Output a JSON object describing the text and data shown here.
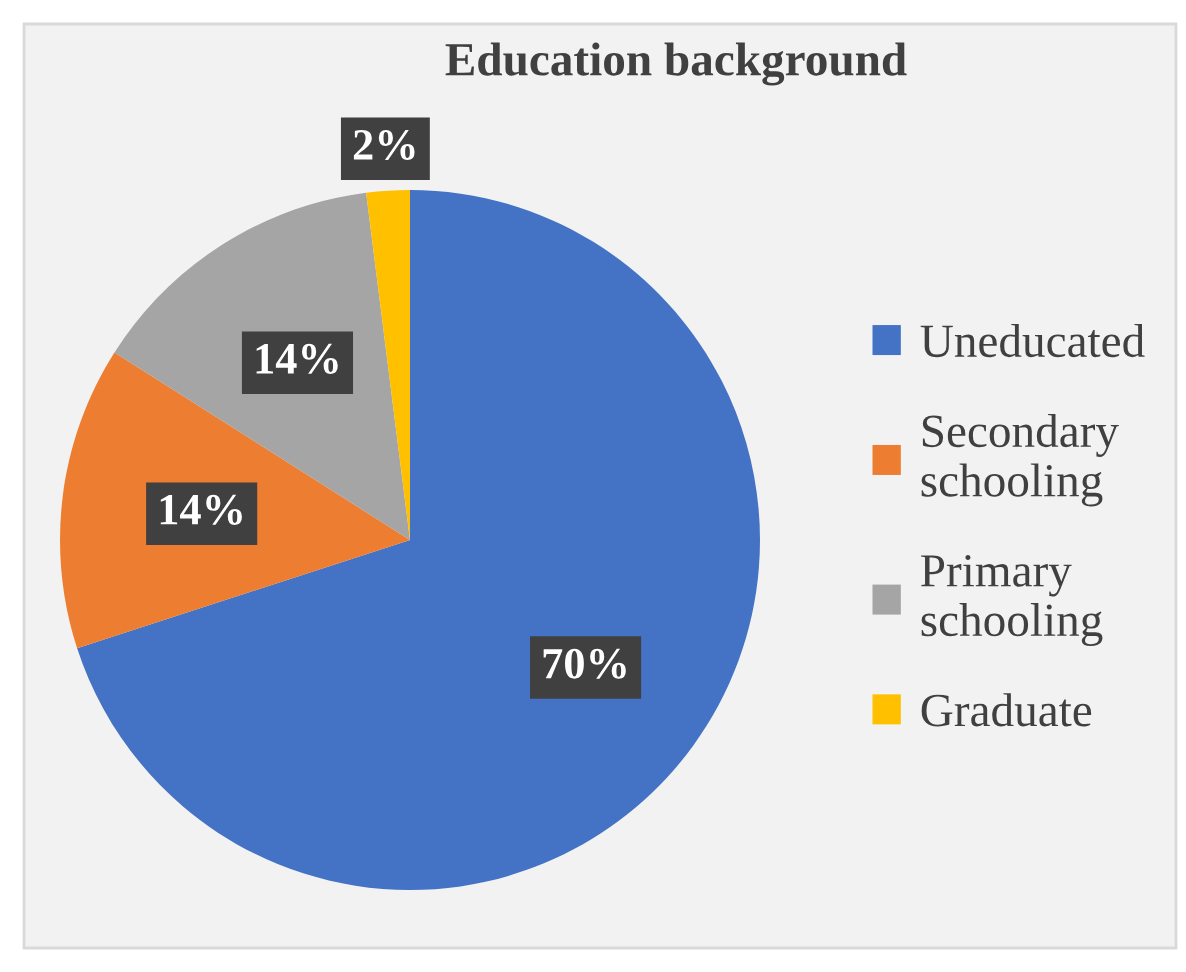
{
  "chart_data": {
    "type": "pie",
    "title": "Education background",
    "categories": [
      "Uneducated",
      "Secondary schooling",
      "Primary schooling",
      "Graduate"
    ],
    "values": [
      70,
      14,
      14,
      2
    ],
    "colors": [
      "#4472c4",
      "#ed7d31",
      "#a5a5a5",
      "#ffc000"
    ],
    "value_labels": [
      "70%",
      "14%",
      "14%",
      "2%"
    ],
    "legend": "right"
  }
}
